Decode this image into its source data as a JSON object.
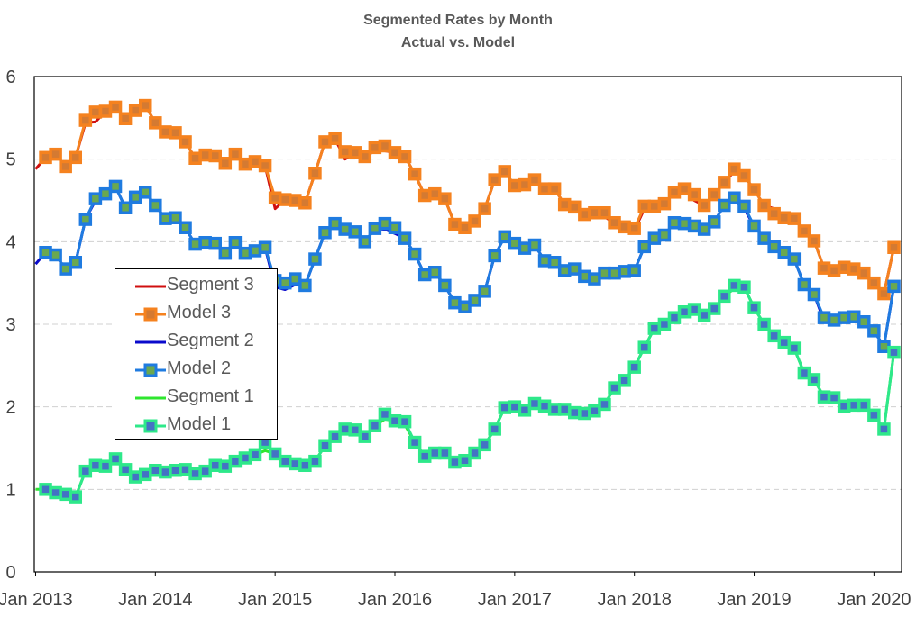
{
  "chart_data": {
    "type": "line",
    "title": "Segmented Rates by Month",
    "subtitle": "Actual vs. Model",
    "xlabel": "",
    "ylabel": "",
    "ylim": [
      0,
      6
    ],
    "yticks": [
      0,
      1,
      2,
      3,
      4,
      5,
      6
    ],
    "xlim": [
      "2012-12-27",
      "2020-03-24"
    ],
    "xticks": [
      {
        "date": "2013-01-01",
        "label": "Jan 2013"
      },
      {
        "date": "2014-01-01",
        "label": "Jan 2014"
      },
      {
        "date": "2015-01-01",
        "label": "Jan 2015"
      },
      {
        "date": "2016-01-01",
        "label": "Jan 2016"
      },
      {
        "date": "2017-01-01",
        "label": "Jan 2017"
      },
      {
        "date": "2018-01-01",
        "label": "Jan 2018"
      },
      {
        "date": "2019-01-01",
        "label": "Jan 2019"
      },
      {
        "date": "2020-01-01",
        "label": "Jan 2020"
      }
    ],
    "grid": "horizontal dashed",
    "legend_position": "center-left",
    "x_start": "2013-01",
    "series": [
      {
        "name": "Segment 3",
        "kind": "line",
        "color": "#d00f0f",
        "values": [
          4.88,
          5.02,
          5.06,
          4.91,
          5.02,
          5.44,
          5.45,
          5.58,
          5.63,
          5.49,
          5.59,
          5.65,
          5.44,
          5.33,
          5.32,
          5.21,
          5.01,
          5.05,
          5.04,
          4.95,
          5.06,
          4.94,
          4.97,
          4.92,
          4.4,
          4.51,
          4.5,
          4.47,
          4.83,
          5.21,
          5.25,
          5.0,
          5.08,
          5.03,
          5.1,
          5.1,
          5.08,
          5.03,
          4.82,
          4.56,
          4.58,
          4.52,
          4.21,
          4.17,
          4.25,
          4.4,
          4.75,
          4.85,
          4.68,
          4.69,
          4.75,
          4.64,
          4.64,
          4.45,
          4.42,
          4.33,
          4.35,
          4.3,
          4.23,
          4.18,
          4.14,
          4.4,
          4.43,
          4.46,
          4.6,
          4.64,
          4.5,
          4.44,
          4.57,
          4.72,
          4.85,
          4.8,
          4.63,
          4.44,
          4.4,
          4.29,
          4.28,
          4.13,
          4.01,
          3.68,
          3.65,
          3.69,
          3.67,
          3.62,
          3.5,
          3.37,
          3.93
        ]
      },
      {
        "name": "Model 3",
        "kind": "marker",
        "color": "#f5821f",
        "fill": "#d47a32",
        "values": [
          null,
          5.02,
          5.06,
          4.91,
          5.02,
          5.47,
          5.57,
          5.58,
          5.63,
          5.49,
          5.59,
          5.65,
          5.44,
          5.33,
          5.32,
          5.21,
          5.01,
          5.05,
          5.04,
          4.95,
          5.06,
          4.94,
          4.97,
          4.92,
          4.53,
          4.51,
          4.5,
          4.47,
          4.83,
          5.21,
          5.25,
          5.09,
          5.08,
          5.03,
          5.14,
          5.16,
          5.08,
          5.03,
          4.82,
          4.56,
          4.58,
          4.52,
          4.21,
          4.17,
          4.25,
          4.4,
          4.75,
          4.85,
          4.68,
          4.69,
          4.75,
          4.64,
          4.64,
          4.45,
          4.42,
          4.33,
          4.35,
          4.35,
          4.23,
          4.18,
          4.16,
          4.43,
          4.43,
          4.46,
          4.6,
          4.64,
          4.57,
          4.44,
          4.57,
          4.72,
          4.88,
          4.8,
          4.63,
          4.44,
          4.34,
          4.29,
          4.28,
          4.13,
          4.01,
          3.68,
          3.65,
          3.69,
          3.67,
          3.62,
          3.5,
          3.37,
          3.93
        ]
      },
      {
        "name": "Segment 2",
        "kind": "line",
        "color": "#0a0acc",
        "values": [
          3.73,
          3.87,
          3.84,
          3.67,
          3.75,
          4.27,
          4.5,
          4.58,
          4.67,
          4.41,
          4.54,
          4.6,
          4.44,
          4.28,
          4.29,
          4.17,
          3.97,
          3.99,
          3.98,
          3.86,
          3.99,
          3.86,
          3.89,
          3.93,
          3.45,
          3.42,
          3.48,
          3.47,
          3.79,
          4.11,
          4.22,
          4.1,
          4.12,
          4.0,
          4.16,
          4.15,
          4.1,
          4.04,
          3.85,
          3.6,
          3.63,
          3.47,
          3.26,
          3.21,
          3.29,
          3.4,
          3.83,
          4.06,
          3.98,
          3.92,
          3.96,
          3.77,
          3.75,
          3.65,
          3.67,
          3.58,
          3.55,
          3.58,
          3.58,
          3.6,
          3.65,
          3.94,
          4.04,
          4.08,
          4.23,
          4.22,
          4.19,
          4.15,
          4.24,
          4.44,
          4.5,
          4.4,
          4.19,
          4.04,
          3.9,
          3.87,
          3.79,
          3.48,
          3.36,
          3.04,
          3.05,
          3.08,
          3.09,
          3.03,
          2.92,
          2.73,
          3.46
        ]
      },
      {
        "name": "Model 2",
        "kind": "marker",
        "color": "#1f7be0",
        "fill": "#6aa84f",
        "values": [
          null,
          3.87,
          3.84,
          3.67,
          3.75,
          4.27,
          4.52,
          4.58,
          4.67,
          4.41,
          4.54,
          4.6,
          4.44,
          4.28,
          4.29,
          4.17,
          3.97,
          3.99,
          3.98,
          3.86,
          3.99,
          3.86,
          3.89,
          3.93,
          3.53,
          3.5,
          3.55,
          3.47,
          3.79,
          4.11,
          4.22,
          4.15,
          4.12,
          4.0,
          4.16,
          4.22,
          4.17,
          4.04,
          3.85,
          3.6,
          3.63,
          3.47,
          3.26,
          3.21,
          3.29,
          3.4,
          3.83,
          4.06,
          3.98,
          3.92,
          3.96,
          3.77,
          3.75,
          3.65,
          3.67,
          3.58,
          3.55,
          3.62,
          3.62,
          3.64,
          3.65,
          3.94,
          4.04,
          4.08,
          4.23,
          4.22,
          4.19,
          4.15,
          4.24,
          4.44,
          4.53,
          4.43,
          4.19,
          4.04,
          3.94,
          3.87,
          3.79,
          3.48,
          3.36,
          3.08,
          3.05,
          3.08,
          3.09,
          3.03,
          2.92,
          2.73,
          3.46
        ]
      },
      {
        "name": "Segment 1",
        "kind": "line",
        "color": "#2ee62e",
        "values": [
          1.0,
          1.0,
          0.96,
          0.94,
          0.91,
          1.22,
          1.29,
          1.28,
          1.37,
          1.24,
          1.15,
          1.18,
          1.23,
          1.21,
          1.23,
          1.24,
          1.19,
          1.22,
          1.26,
          1.28,
          1.34,
          1.38,
          1.42,
          1.47,
          1.43,
          1.34,
          1.31,
          1.29,
          1.34,
          1.53,
          1.64,
          1.73,
          1.72,
          1.64,
          1.77,
          1.85,
          1.83,
          1.78,
          1.57,
          1.4,
          1.44,
          1.44,
          1.33,
          1.35,
          1.44,
          1.54,
          1.73,
          1.99,
          2.0,
          1.96,
          2.04,
          2.01,
          1.97,
          1.97,
          1.93,
          1.92,
          1.95,
          2.03,
          2.23,
          2.32,
          2.48,
          2.72,
          2.95,
          3.0,
          3.08,
          3.15,
          3.18,
          3.11,
          3.19,
          3.34,
          3.43,
          3.45,
          3.2,
          3.0,
          2.86,
          2.78,
          2.71,
          2.41,
          2.33,
          2.12,
          2.11,
          2.01,
          2.02,
          2.02,
          1.9,
          1.73,
          2.66
        ]
      },
      {
        "name": "Model 1",
        "kind": "marker",
        "color": "#2ee88a",
        "fill": "#4472c4",
        "values": [
          null,
          1.0,
          0.96,
          0.94,
          0.91,
          1.22,
          1.29,
          1.28,
          1.37,
          1.24,
          1.15,
          1.18,
          1.23,
          1.21,
          1.23,
          1.24,
          1.19,
          1.22,
          1.29,
          1.28,
          1.34,
          1.38,
          1.42,
          1.57,
          1.43,
          1.34,
          1.31,
          1.29,
          1.34,
          1.53,
          1.64,
          1.73,
          1.72,
          1.64,
          1.77,
          1.91,
          1.83,
          1.82,
          1.57,
          1.4,
          1.44,
          1.44,
          1.33,
          1.35,
          1.44,
          1.54,
          1.73,
          1.99,
          2.0,
          1.96,
          2.04,
          2.01,
          1.97,
          1.97,
          1.93,
          1.92,
          1.95,
          2.03,
          2.23,
          2.32,
          2.48,
          2.72,
          2.95,
          3.0,
          3.08,
          3.15,
          3.18,
          3.11,
          3.19,
          3.34,
          3.47,
          3.45,
          3.2,
          3.0,
          2.86,
          2.78,
          2.71,
          2.41,
          2.33,
          2.12,
          2.11,
          2.01,
          2.02,
          2.02,
          1.9,
          1.73,
          2.66
        ]
      }
    ]
  }
}
